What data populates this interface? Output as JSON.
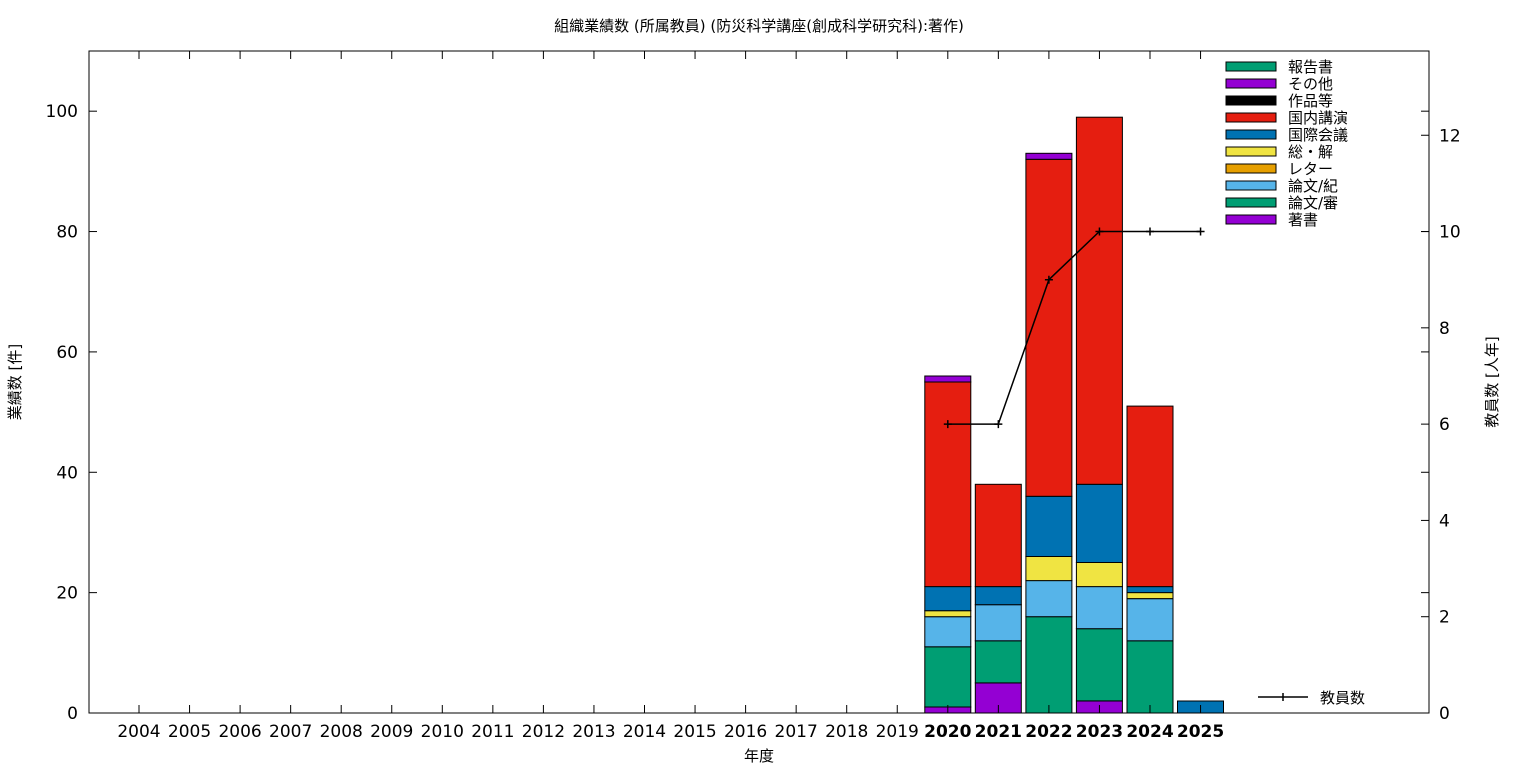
{
  "chart_data": {
    "type": "bar",
    "title": "組織業績数 (所属教員) (防災科学講座(創成科学研究科):著作)",
    "xlabel": "年度",
    "ylabel": "業績数 [件]",
    "y2label": "教員数 [人年]",
    "ylim": [
      0,
      110
    ],
    "y2lim": [
      0,
      13.75
    ],
    "yticks": [
      0,
      20,
      40,
      60,
      80,
      100
    ],
    "y2ticks": [
      0,
      2,
      4,
      6,
      8,
      10,
      12
    ],
    "grid": false,
    "legend_position": "top-right",
    "categories": [
      "2004",
      "2005",
      "2006",
      "2007",
      "2008",
      "2009",
      "2010",
      "2011",
      "2012",
      "2013",
      "2014",
      "2015",
      "2016",
      "2017",
      "2018",
      "2019",
      "2020",
      "2021",
      "2022",
      "2023",
      "2024",
      "2025"
    ],
    "series": [
      {
        "name": "著書",
        "color": "#9400d3",
        "values": [
          0,
          0,
          0,
          0,
          0,
          0,
          0,
          0,
          0,
          0,
          0,
          0,
          0,
          0,
          0,
          0,
          1,
          5,
          0,
          2,
          0,
          0
        ]
      },
      {
        "name": "論文/審",
        "color": "#009e73",
        "values": [
          0,
          0,
          0,
          0,
          0,
          0,
          0,
          0,
          0,
          0,
          0,
          0,
          0,
          0,
          0,
          0,
          10,
          7,
          16,
          12,
          12,
          0
        ]
      },
      {
        "name": "論文/紀",
        "color": "#56b4e9",
        "values": [
          0,
          0,
          0,
          0,
          0,
          0,
          0,
          0,
          0,
          0,
          0,
          0,
          0,
          0,
          0,
          0,
          5,
          6,
          6,
          7,
          7,
          0
        ]
      },
      {
        "name": "レター",
        "color": "#e69f00",
        "values": [
          0,
          0,
          0,
          0,
          0,
          0,
          0,
          0,
          0,
          0,
          0,
          0,
          0,
          0,
          0,
          0,
          0,
          0,
          0,
          0,
          0,
          0
        ]
      },
      {
        "name": "総・解",
        "color": "#f0e442",
        "values": [
          0,
          0,
          0,
          0,
          0,
          0,
          0,
          0,
          0,
          0,
          0,
          0,
          0,
          0,
          0,
          0,
          1,
          0,
          4,
          4,
          1,
          0
        ]
      },
      {
        "name": "国際会議",
        "color": "#0072b2",
        "values": [
          0,
          0,
          0,
          0,
          0,
          0,
          0,
          0,
          0,
          0,
          0,
          0,
          0,
          0,
          0,
          0,
          4,
          3,
          10,
          13,
          1,
          2
        ]
      },
      {
        "name": "国内講演",
        "color": "#e51e10",
        "values": [
          0,
          0,
          0,
          0,
          0,
          0,
          0,
          0,
          0,
          0,
          0,
          0,
          0,
          0,
          0,
          0,
          34,
          17,
          56,
          61,
          30,
          0
        ]
      },
      {
        "name": "作品等",
        "color": "#000000",
        "values": [
          0,
          0,
          0,
          0,
          0,
          0,
          0,
          0,
          0,
          0,
          0,
          0,
          0,
          0,
          0,
          0,
          0,
          0,
          0,
          0,
          0,
          0
        ]
      },
      {
        "name": "その他",
        "color": "#9400d3",
        "values": [
          0,
          0,
          0,
          0,
          0,
          0,
          0,
          0,
          0,
          0,
          0,
          0,
          0,
          0,
          0,
          0,
          1,
          0,
          1,
          0,
          0,
          0
        ]
      },
      {
        "name": "報告書",
        "color": "#009e73",
        "values": [
          0,
          0,
          0,
          0,
          0,
          0,
          0,
          0,
          0,
          0,
          0,
          0,
          0,
          0,
          0,
          0,
          0,
          0,
          0,
          0,
          0,
          0
        ]
      }
    ],
    "line_series": {
      "name": "教員数",
      "color": "#000000",
      "categories": [
        "2020",
        "2021",
        "2022",
        "2023",
        "2024",
        "2025"
      ],
      "values": [
        6,
        6,
        9,
        10,
        10,
        10
      ]
    },
    "bold_categories": [
      "2020",
      "2021",
      "2022",
      "2023",
      "2024",
      "2025"
    ]
  }
}
